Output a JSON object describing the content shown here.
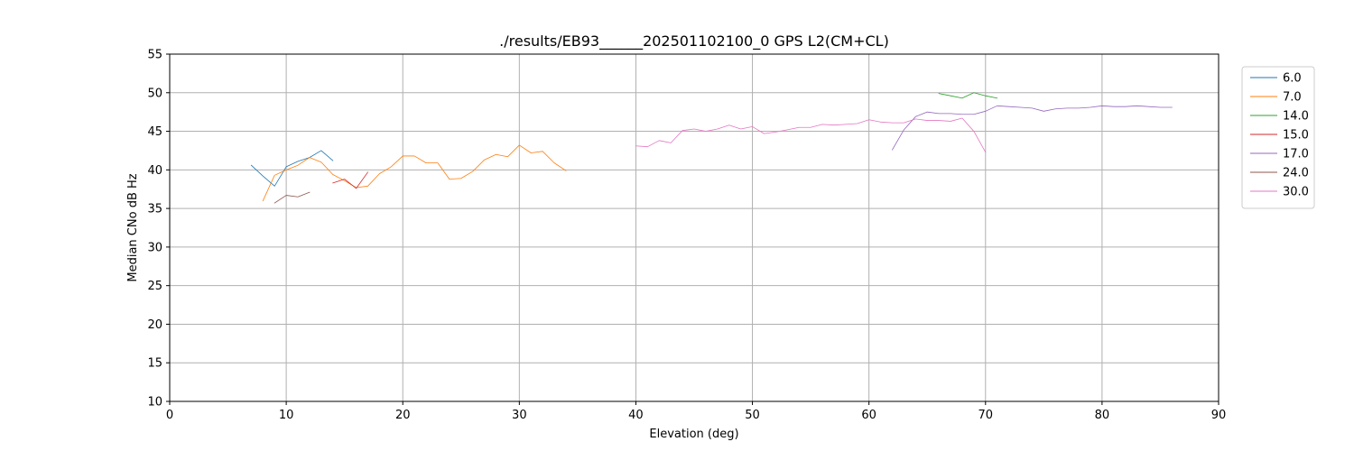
{
  "chart_data": {
    "type": "line",
    "title": "./results/EB93______202501102100_0 GPS L2(CM+CL)",
    "xlabel": "Elevation (deg)",
    "ylabel": "Median CNo dB Hz",
    "xlim": [
      0,
      90
    ],
    "ylim": [
      10,
      55
    ],
    "xticks": [
      0,
      10,
      20,
      30,
      40,
      50,
      60,
      70,
      80,
      90
    ],
    "yticks": [
      10,
      15,
      20,
      25,
      30,
      35,
      40,
      45,
      50,
      55
    ],
    "grid": true,
    "legend_position": "right",
    "series": [
      {
        "name": "6.0",
        "color": "#1f77b4",
        "points": [
          [
            7,
            40.6
          ],
          [
            8,
            39.2
          ],
          [
            9,
            37.9
          ],
          [
            10,
            40.4
          ],
          [
            11,
            41.1
          ],
          [
            12,
            41.6
          ],
          [
            13,
            42.5
          ],
          [
            14,
            41.2
          ]
        ]
      },
      {
        "name": "7.0",
        "color": "#ff7f0e",
        "points": [
          [
            8,
            36.0
          ],
          [
            9,
            39.3
          ],
          [
            10,
            40.0
          ],
          [
            11,
            40.6
          ],
          [
            12,
            41.6
          ],
          [
            13,
            41.0
          ],
          [
            14,
            39.4
          ],
          [
            15,
            38.6
          ],
          [
            16,
            37.7
          ],
          [
            17,
            37.9
          ],
          [
            18,
            39.5
          ],
          [
            19,
            40.4
          ],
          [
            20,
            41.8
          ],
          [
            21,
            41.8
          ],
          [
            22,
            40.9
          ],
          [
            23,
            40.9
          ],
          [
            24,
            38.8
          ],
          [
            25,
            38.9
          ],
          [
            26,
            39.8
          ],
          [
            27,
            41.3
          ],
          [
            28,
            42.0
          ],
          [
            29,
            41.7
          ],
          [
            30,
            43.2
          ],
          [
            31,
            42.2
          ],
          [
            32,
            42.4
          ],
          [
            33,
            40.9
          ],
          [
            34,
            39.9
          ]
        ]
      },
      {
        "name": "14.0",
        "color": "#2ca02c",
        "points": [
          [
            66,
            49.9
          ],
          [
            67,
            49.6
          ],
          [
            68,
            49.3
          ],
          [
            69,
            50.0
          ],
          [
            70,
            49.6
          ],
          [
            71,
            49.3
          ]
        ]
      },
      {
        "name": "15.0",
        "color": "#d62728",
        "points": [
          [
            14,
            38.3
          ],
          [
            15,
            38.8
          ],
          [
            16,
            37.6
          ],
          [
            17,
            39.7
          ]
        ]
      },
      {
        "name": "17.0",
        "color": "#9467bd",
        "points": [
          [
            62,
            42.6
          ],
          [
            63,
            45.2
          ],
          [
            64,
            46.9
          ],
          [
            65,
            47.5
          ],
          [
            66,
            47.3
          ],
          [
            67,
            47.3
          ],
          [
            68,
            47.2
          ],
          [
            69,
            47.2
          ],
          [
            70,
            47.6
          ],
          [
            71,
            48.3
          ],
          [
            72,
            48.2
          ],
          [
            73,
            48.1
          ],
          [
            74,
            48.0
          ],
          [
            75,
            47.6
          ],
          [
            76,
            47.9
          ],
          [
            77,
            48.0
          ],
          [
            78,
            48.0
          ],
          [
            79,
            48.1
          ],
          [
            80,
            48.3
          ],
          [
            81,
            48.2
          ],
          [
            82,
            48.2
          ],
          [
            83,
            48.3
          ],
          [
            84,
            48.2
          ],
          [
            85,
            48.1
          ],
          [
            86,
            48.1
          ]
        ]
      },
      {
        "name": "24.0",
        "color": "#8c564b",
        "points": [
          [
            9,
            35.7
          ],
          [
            10,
            36.7
          ],
          [
            11,
            36.5
          ],
          [
            12,
            37.1
          ]
        ]
      },
      {
        "name": "30.0",
        "color": "#e377c2",
        "points": [
          [
            40,
            43.1
          ],
          [
            41,
            43.0
          ],
          [
            42,
            43.8
          ],
          [
            43,
            43.5
          ],
          [
            44,
            45.1
          ],
          [
            45,
            45.3
          ],
          [
            46,
            45.0
          ],
          [
            47,
            45.3
          ],
          [
            48,
            45.8
          ],
          [
            49,
            45.3
          ],
          [
            50,
            45.6
          ],
          [
            51,
            44.7
          ],
          [
            52,
            44.9
          ],
          [
            53,
            45.2
          ],
          [
            54,
            45.5
          ],
          [
            55,
            45.5
          ],
          [
            56,
            45.9
          ],
          [
            57,
            45.8
          ],
          [
            58,
            45.9
          ],
          [
            59,
            46.0
          ],
          [
            60,
            46.5
          ],
          [
            61,
            46.2
          ],
          [
            62,
            46.1
          ],
          [
            63,
            46.1
          ],
          [
            64,
            46.6
          ],
          [
            65,
            46.4
          ],
          [
            66,
            46.4
          ],
          [
            67,
            46.3
          ],
          [
            68,
            46.7
          ],
          [
            69,
            45.0
          ],
          [
            70,
            42.3
          ]
        ]
      }
    ]
  }
}
